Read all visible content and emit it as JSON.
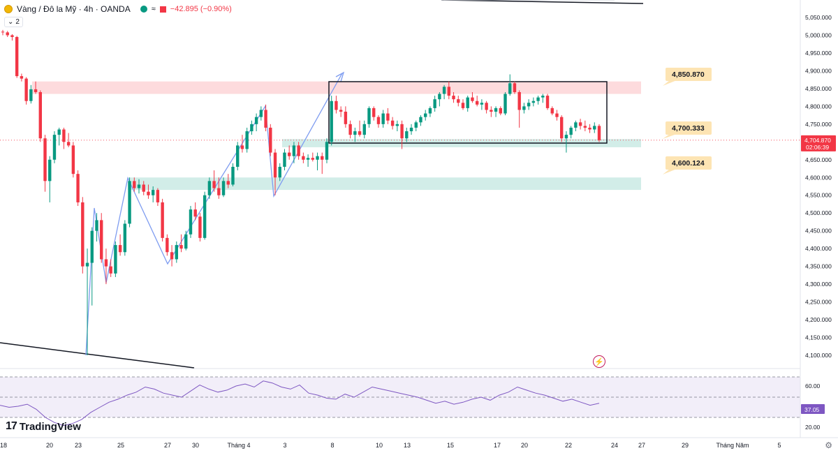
{
  "header": {
    "symbol": "Vàng / Đô la Mỹ · 4h · OANDA",
    "approx_icon": "≈",
    "change": "−42.895 (−0.90%)",
    "indicator_count": "2",
    "colors": {
      "up": "#089981",
      "down": "#f23645",
      "gold": "#f2b705"
    }
  },
  "price_axis": {
    "labels": [
      "5,050.000",
      "5,000.000",
      "4,950.000",
      "4,900.000",
      "4,850.000",
      "4,800.000",
      "4,750.000",
      "4,700.000",
      "4,650.000",
      "4,600.000",
      "4,550.000",
      "4,500.000",
      "4,450.000",
      "4,400.000",
      "4,350.000",
      "4,300.000",
      "4,250.000",
      "4,200.000",
      "4,150.000",
      "4,100.000"
    ],
    "current_price": "4,704.870",
    "countdown": "02:06:39"
  },
  "time_axis": {
    "labels": [
      "18",
      "20",
      "23",
      "25",
      "27",
      "30",
      "Tháng 4",
      "3",
      "8",
      "10",
      "13",
      "15",
      "17",
      "20",
      "22",
      "24",
      "27",
      "29",
      "Tháng Năm",
      "5"
    ]
  },
  "annotations": {
    "level_high": "4,850.870",
    "level_mid": "4,700.333",
    "level_low": "4,600.124"
  },
  "rsi": {
    "labels": [
      "60.00",
      "20.00"
    ],
    "current": "37.05"
  },
  "branding": {
    "name": "TradingView"
  },
  "chart_data": {
    "type": "candlestick",
    "title": "Vàng / Đô la Mỹ · 4h · OANDA",
    "ylim": [
      4080,
      5070
    ],
    "xlabel": "",
    "ylabel": "",
    "candles": [
      {
        "o": 5010,
        "h": 5015,
        "l": 5000,
        "c": 5008
      },
      {
        "o": 5008,
        "h": 5012,
        "l": 4995,
        "c": 5000
      },
      {
        "o": 5000,
        "h": 5003,
        "l": 4985,
        "c": 4995
      },
      {
        "o": 4995,
        "h": 4998,
        "l": 4880,
        "c": 4885
      },
      {
        "o": 4885,
        "h": 4892,
        "l": 4870,
        "c": 4878
      },
      {
        "o": 4878,
        "h": 4882,
        "l": 4805,
        "c": 4815
      },
      {
        "o": 4815,
        "h": 4860,
        "l": 4808,
        "c": 4848
      },
      {
        "o": 4848,
        "h": 4870,
        "l": 4835,
        "c": 4840
      },
      {
        "o": 4840,
        "h": 4845,
        "l": 4700,
        "c": 4710
      },
      {
        "o": 4710,
        "h": 4720,
        "l": 4560,
        "c": 4590
      },
      {
        "o": 4590,
        "h": 4660,
        "l": 4530,
        "c": 4650
      },
      {
        "o": 4650,
        "h": 4730,
        "l": 4640,
        "c": 4720
      },
      {
        "o": 4720,
        "h": 4740,
        "l": 4690,
        "c": 4735
      },
      {
        "o": 4735,
        "h": 4740,
        "l": 4680,
        "c": 4700
      },
      {
        "o": 4700,
        "h": 4725,
        "l": 4685,
        "c": 4690
      },
      {
        "o": 4690,
        "h": 4700,
        "l": 4600,
        "c": 4610
      },
      {
        "o": 4610,
        "h": 4620,
        "l": 4520,
        "c": 4530
      },
      {
        "o": 4530,
        "h": 4545,
        "l": 4330,
        "c": 4350
      },
      {
        "o": 4350,
        "h": 4400,
        "l": 4100,
        "c": 4360
      },
      {
        "o": 4360,
        "h": 4460,
        "l": 4240,
        "c": 4450
      },
      {
        "o": 4450,
        "h": 4500,
        "l": 4420,
        "c": 4480
      },
      {
        "o": 4480,
        "h": 4500,
        "l": 4360,
        "c": 4370
      },
      {
        "o": 4370,
        "h": 4400,
        "l": 4300,
        "c": 4350
      },
      {
        "o": 4350,
        "h": 4370,
        "l": 4320,
        "c": 4330
      },
      {
        "o": 4330,
        "h": 4420,
        "l": 4320,
        "c": 4410
      },
      {
        "o": 4410,
        "h": 4440,
        "l": 4380,
        "c": 4390
      },
      {
        "o": 4390,
        "h": 4480,
        "l": 4380,
        "c": 4470
      },
      {
        "o": 4470,
        "h": 4600,
        "l": 4460,
        "c": 4590
      },
      {
        "o": 4590,
        "h": 4600,
        "l": 4560,
        "c": 4570
      },
      {
        "o": 4570,
        "h": 4595,
        "l": 4555,
        "c": 4580
      },
      {
        "o": 4580,
        "h": 4590,
        "l": 4550,
        "c": 4560
      },
      {
        "o": 4560,
        "h": 4580,
        "l": 4540,
        "c": 4550
      },
      {
        "o": 4550,
        "h": 4575,
        "l": 4530,
        "c": 4565
      },
      {
        "o": 4565,
        "h": 4570,
        "l": 4520,
        "c": 4530
      },
      {
        "o": 4530,
        "h": 4540,
        "l": 4420,
        "c": 4430
      },
      {
        "o": 4430,
        "h": 4440,
        "l": 4380,
        "c": 4390
      },
      {
        "o": 4390,
        "h": 4410,
        "l": 4350,
        "c": 4370
      },
      {
        "o": 4370,
        "h": 4420,
        "l": 4360,
        "c": 4410
      },
      {
        "o": 4410,
        "h": 4440,
        "l": 4390,
        "c": 4400
      },
      {
        "o": 4400,
        "h": 4450,
        "l": 4395,
        "c": 4440
      },
      {
        "o": 4440,
        "h": 4520,
        "l": 4430,
        "c": 4510
      },
      {
        "o": 4510,
        "h": 4530,
        "l": 4480,
        "c": 4490
      },
      {
        "o": 4490,
        "h": 4500,
        "l": 4420,
        "c": 4430
      },
      {
        "o": 4430,
        "h": 4560,
        "l": 4425,
        "c": 4550
      },
      {
        "o": 4550,
        "h": 4600,
        "l": 4540,
        "c": 4590
      },
      {
        "o": 4590,
        "h": 4620,
        "l": 4560,
        "c": 4570
      },
      {
        "o": 4570,
        "h": 4600,
        "l": 4540,
        "c": 4550
      },
      {
        "o": 4550,
        "h": 4600,
        "l": 4545,
        "c": 4590
      },
      {
        "o": 4590,
        "h": 4610,
        "l": 4570,
        "c": 4580
      },
      {
        "o": 4580,
        "h": 4640,
        "l": 4575,
        "c": 4630
      },
      {
        "o": 4630,
        "h": 4700,
        "l": 4620,
        "c": 4690
      },
      {
        "o": 4690,
        "h": 4720,
        "l": 4670,
        "c": 4680
      },
      {
        "o": 4680,
        "h": 4740,
        "l": 4670,
        "c": 4730
      },
      {
        "o": 4730,
        "h": 4760,
        "l": 4720,
        "c": 4750
      },
      {
        "o": 4750,
        "h": 4780,
        "l": 4730,
        "c": 4770
      },
      {
        "o": 4770,
        "h": 4800,
        "l": 4760,
        "c": 4790
      },
      {
        "o": 4790,
        "h": 4805,
        "l": 4730,
        "c": 4740
      },
      {
        "o": 4740,
        "h": 4750,
        "l": 4660,
        "c": 4670
      },
      {
        "o": 4670,
        "h": 4680,
        "l": 4550,
        "c": 4600
      },
      {
        "o": 4600,
        "h": 4640,
        "l": 4590,
        "c": 4630
      },
      {
        "o": 4630,
        "h": 4680,
        "l": 4620,
        "c": 4670
      },
      {
        "o": 4670,
        "h": 4690,
        "l": 4650,
        "c": 4660
      },
      {
        "o": 4660,
        "h": 4700,
        "l": 4640,
        "c": 4690
      },
      {
        "o": 4690,
        "h": 4700,
        "l": 4650,
        "c": 4660
      },
      {
        "o": 4660,
        "h": 4670,
        "l": 4640,
        "c": 4650
      },
      {
        "o": 4650,
        "h": 4665,
        "l": 4630,
        "c": 4655
      },
      {
        "o": 4655,
        "h": 4670,
        "l": 4645,
        "c": 4650
      },
      {
        "o": 4650,
        "h": 4670,
        "l": 4620,
        "c": 4660
      },
      {
        "o": 4660,
        "h": 4670,
        "l": 4610,
        "c": 4650
      },
      {
        "o": 4650,
        "h": 4710,
        "l": 4640,
        "c": 4700
      },
      {
        "o": 4700,
        "h": 4830,
        "l": 4690,
        "c": 4815
      },
      {
        "o": 4815,
        "h": 4830,
        "l": 4780,
        "c": 4790
      },
      {
        "o": 4790,
        "h": 4800,
        "l": 4770,
        "c": 4785
      },
      {
        "o": 4785,
        "h": 4800,
        "l": 4740,
        "c": 4750
      },
      {
        "o": 4750,
        "h": 4760,
        "l": 4710,
        "c": 4720
      },
      {
        "o": 4720,
        "h": 4740,
        "l": 4700,
        "c": 4730
      },
      {
        "o": 4730,
        "h": 4760,
        "l": 4715,
        "c": 4720
      },
      {
        "o": 4720,
        "h": 4760,
        "l": 4710,
        "c": 4750
      },
      {
        "o": 4750,
        "h": 4800,
        "l": 4740,
        "c": 4795
      },
      {
        "o": 4795,
        "h": 4800,
        "l": 4760,
        "c": 4770
      },
      {
        "o": 4770,
        "h": 4775,
        "l": 4740,
        "c": 4750
      },
      {
        "o": 4750,
        "h": 4790,
        "l": 4740,
        "c": 4780
      },
      {
        "o": 4780,
        "h": 4795,
        "l": 4750,
        "c": 4760
      },
      {
        "o": 4760,
        "h": 4770,
        "l": 4735,
        "c": 4745
      },
      {
        "o": 4745,
        "h": 4760,
        "l": 4730,
        "c": 4750
      },
      {
        "o": 4750,
        "h": 4760,
        "l": 4680,
        "c": 4710
      },
      {
        "o": 4710,
        "h": 4740,
        "l": 4700,
        "c": 4730
      },
      {
        "o": 4730,
        "h": 4750,
        "l": 4720,
        "c": 4740
      },
      {
        "o": 4740,
        "h": 4760,
        "l": 4730,
        "c": 4755
      },
      {
        "o": 4755,
        "h": 4775,
        "l": 4745,
        "c": 4770
      },
      {
        "o": 4770,
        "h": 4790,
        "l": 4760,
        "c": 4780
      },
      {
        "o": 4780,
        "h": 4800,
        "l": 4770,
        "c": 4795
      },
      {
        "o": 4795,
        "h": 4830,
        "l": 4785,
        "c": 4820
      },
      {
        "o": 4820,
        "h": 4840,
        "l": 4800,
        "c": 4835
      },
      {
        "o": 4835,
        "h": 4860,
        "l": 4820,
        "c": 4855
      },
      {
        "o": 4855,
        "h": 4870,
        "l": 4820,
        "c": 4830
      },
      {
        "o": 4830,
        "h": 4840,
        "l": 4810,
        "c": 4820
      },
      {
        "o": 4820,
        "h": 4830,
        "l": 4800,
        "c": 4810
      },
      {
        "o": 4810,
        "h": 4820,
        "l": 4790,
        "c": 4795
      },
      {
        "o": 4795,
        "h": 4830,
        "l": 4785,
        "c": 4825
      },
      {
        "o": 4825,
        "h": 4840,
        "l": 4810,
        "c": 4815
      },
      {
        "o": 4815,
        "h": 4830,
        "l": 4800,
        "c": 4805
      },
      {
        "o": 4805,
        "h": 4820,
        "l": 4790,
        "c": 4810
      },
      {
        "o": 4810,
        "h": 4815,
        "l": 4780,
        "c": 4790
      },
      {
        "o": 4790,
        "h": 4800,
        "l": 4770,
        "c": 4785
      },
      {
        "o": 4785,
        "h": 4800,
        "l": 4770,
        "c": 4795
      },
      {
        "o": 4795,
        "h": 4800,
        "l": 4775,
        "c": 4780
      },
      {
        "o": 4780,
        "h": 4840,
        "l": 4775,
        "c": 4835
      },
      {
        "o": 4835,
        "h": 4890,
        "l": 4830,
        "c": 4865
      },
      {
        "o": 4865,
        "h": 4870,
        "l": 4835,
        "c": 4840
      },
      {
        "o": 4840,
        "h": 4845,
        "l": 4740,
        "c": 4790
      },
      {
        "o": 4790,
        "h": 4810,
        "l": 4780,
        "c": 4800
      },
      {
        "o": 4800,
        "h": 4820,
        "l": 4790,
        "c": 4810
      },
      {
        "o": 4810,
        "h": 4825,
        "l": 4800,
        "c": 4815
      },
      {
        "o": 4815,
        "h": 4830,
        "l": 4805,
        "c": 4825
      },
      {
        "o": 4825,
        "h": 4835,
        "l": 4810,
        "c": 4830
      },
      {
        "o": 4830,
        "h": 4835,
        "l": 4790,
        "c": 4795
      },
      {
        "o": 4795,
        "h": 4800,
        "l": 4775,
        "c": 4780
      },
      {
        "o": 4780,
        "h": 4790,
        "l": 4760,
        "c": 4770
      },
      {
        "o": 4770,
        "h": 4775,
        "l": 4700,
        "c": 4710
      },
      {
        "o": 4710,
        "h": 4730,
        "l": 4670,
        "c": 4720
      },
      {
        "o": 4720,
        "h": 4745,
        "l": 4710,
        "c": 4740
      },
      {
        "o": 4740,
        "h": 4760,
        "l": 4730,
        "c": 4755
      },
      {
        "o": 4755,
        "h": 4765,
        "l": 4735,
        "c": 4745
      },
      {
        "o": 4745,
        "h": 4760,
        "l": 4730,
        "c": 4740
      },
      {
        "o": 4740,
        "h": 4750,
        "l": 4725,
        "c": 4735
      },
      {
        "o": 4735,
        "h": 4755,
        "l": 4725,
        "c": 4745
      },
      {
        "o": 4745,
        "h": 4750,
        "l": 4700,
        "c": 4705
      }
    ],
    "zones": [
      {
        "name": "resistance",
        "from": 4835,
        "to": 4870,
        "color": "#f23645"
      },
      {
        "name": "support-upper",
        "from": 4685,
        "to": 4708,
        "color": "#089981"
      },
      {
        "name": "support-lower",
        "from": 4565,
        "to": 4600,
        "color": "#089981"
      }
    ],
    "rsi_values": [
      42,
      40,
      41,
      43,
      38,
      30,
      25,
      22,
      24,
      28,
      35,
      40,
      45,
      48,
      52,
      55,
      60,
      58,
      54,
      52,
      50,
      56,
      62,
      58,
      55,
      57,
      61,
      63,
      60,
      66,
      64,
      60,
      58,
      62,
      54,
      52,
      49,
      48,
      53,
      50,
      55,
      60,
      58,
      56,
      54,
      52,
      50,
      47,
      44,
      46,
      43,
      45,
      48,
      50,
      47,
      52,
      55,
      60,
      57,
      54,
      52,
      49,
      46,
      48,
      45,
      42,
      44
    ]
  }
}
